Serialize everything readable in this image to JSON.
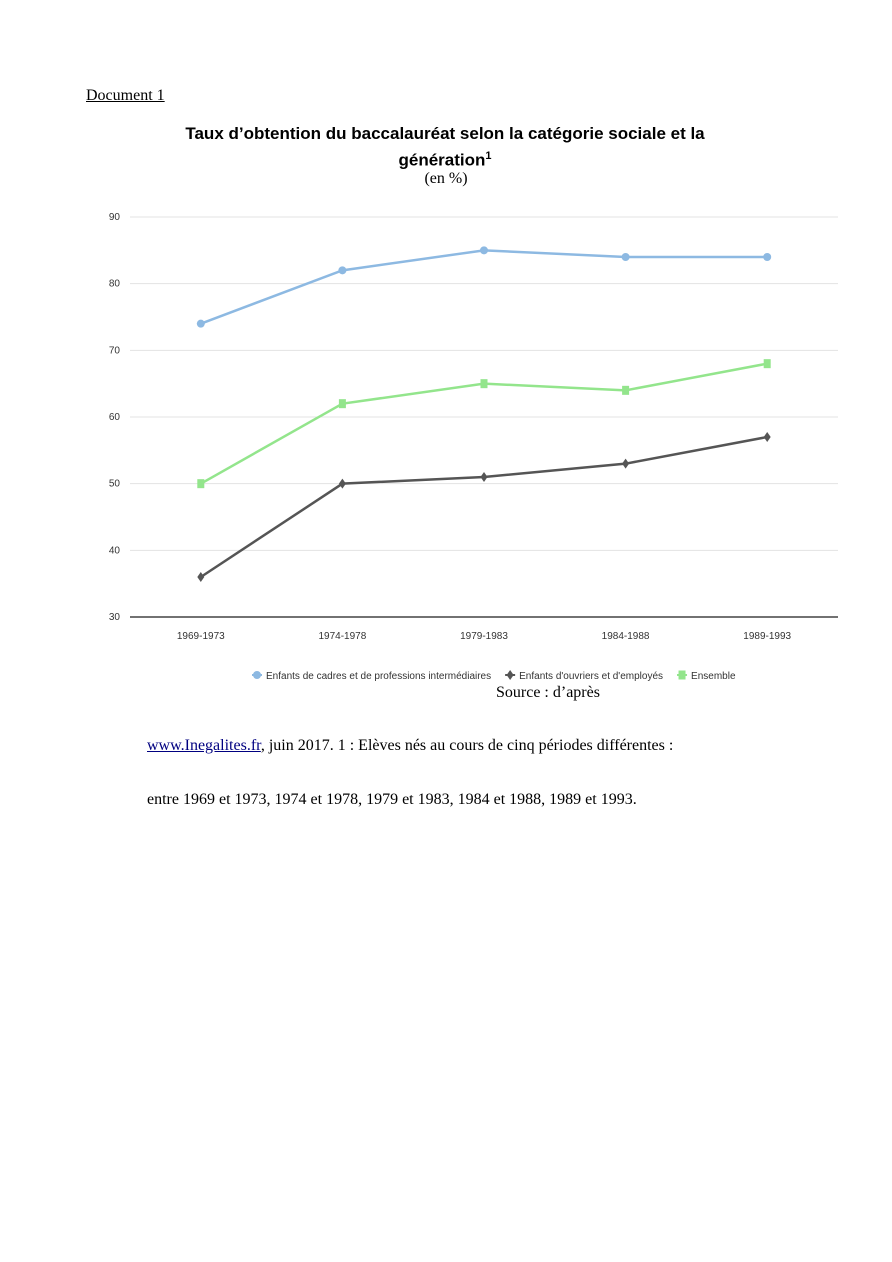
{
  "document_label": "Document 1",
  "title": "Taux d’obtention du baccalauréat selon la catégorie sociale et la génération",
  "title_footnote_mark": "1",
  "unit": "(en %)",
  "source": "Source : d’après",
  "note": {
    "link_text": "www.Inegalites.fr",
    "line1_rest": ", juin 2017. 1 : Elèves nés au cours de cinq périodes différentes :",
    "line2": "entre 1969 et 1973, 1974 et 1978, 1979 et 1983, 1984 et 1988, 1989 et 1993."
  },
  "chart_data": {
    "type": "line",
    "title": "Taux d’obtention du baccalauréat selon la catégorie sociale et la génération",
    "xlabel": "",
    "ylabel": "(en %)",
    "categories": [
      "1969-1973",
      "1974-1978",
      "1979-1983",
      "1984-1988",
      "1989-1993"
    ],
    "ylim": [
      30,
      90
    ],
    "yticks": [
      30,
      40,
      50,
      60,
      70,
      80,
      90
    ],
    "grid": true,
    "legend_position": "bottom",
    "series": [
      {
        "name": "Enfants de cadres et de professions intermédiaires",
        "color": "#8db9e2",
        "marker": "circle",
        "values": [
          74,
          82,
          85,
          84,
          84
        ]
      },
      {
        "name": "Enfants d'ouvriers et d'employés",
        "color": "#555555",
        "marker": "diamond",
        "values": [
          36,
          50,
          51,
          53,
          57
        ]
      },
      {
        "name": "Ensemble",
        "color": "#93e58c",
        "marker": "square",
        "values": [
          50,
          62,
          65,
          64,
          68
        ]
      }
    ]
  }
}
